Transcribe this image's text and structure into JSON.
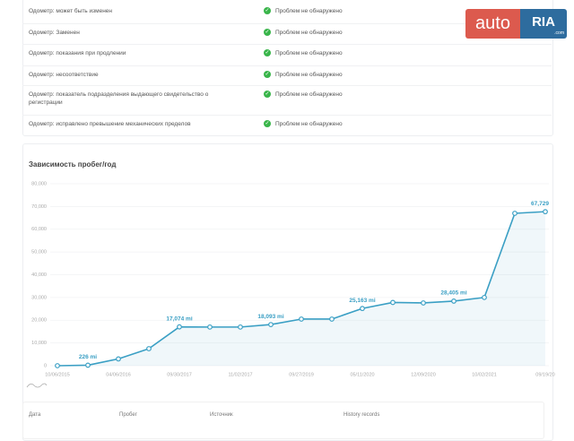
{
  "logo": {
    "left": "auto",
    "right": "RIA",
    "suffix": ".com"
  },
  "checks": [
    {
      "label": "Одометр: может быть изменен",
      "status": "Проблем не обнаружено"
    },
    {
      "label": "Одометр: Заменен",
      "status": "Проблем не обнаружено"
    },
    {
      "label": "Одометр: показания при продлении",
      "status": "Проблем не обнаружено"
    },
    {
      "label": "Одометр: несоответствие",
      "status": "Проблем не обнаружено"
    },
    {
      "label": "Одометр: показатель подразделения выдающего свидетельство о регистрации",
      "status": "Проблем не обнаружено"
    },
    {
      "label": "Одометр: исправлено превышение механических пределов",
      "status": "Проблем не обнаружено"
    }
  ],
  "chart_data": {
    "type": "line",
    "title": "Зависимость пробег/год",
    "categories": [
      "10/06/2015",
      null,
      "04/06/2016",
      null,
      "09/30/2017",
      null,
      "11/02/2017",
      null,
      "09/27/2019",
      null,
      "05/11/2020",
      null,
      "12/09/2020",
      null,
      "10/02/2021",
      null,
      "09/19/20"
    ],
    "values": [
      0,
      226,
      3000,
      7500,
      17074,
      17000,
      17000,
      18093,
      20500,
      20500,
      25163,
      27800,
      27600,
      28405,
      30000,
      67000,
      67729
    ],
    "value_labels": [
      null,
      "226 mi",
      null,
      null,
      "17,074 mi",
      null,
      null,
      "18,093 mi",
      null,
      null,
      "25,163 mi",
      null,
      null,
      "28,405 mi",
      null,
      null,
      "67,729"
    ],
    "color": "#3a9fc4",
    "ylim": [
      0,
      80000
    ],
    "yticks": [
      0,
      {
        "value": 10000,
        "label": "10,000"
      },
      {
        "value": 20000,
        "label": "20,000"
      },
      {
        "value": 30000,
        "label": "30,000"
      },
      {
        "value": 40000,
        "label": "40,000"
      },
      {
        "value": 50000,
        "label": "50,000"
      },
      {
        "value": 60000,
        "label": "60,000"
      },
      {
        "value": 70000,
        "label": "70,000"
      },
      {
        "value": 80000,
        "label": "80,000"
      }
    ],
    "grid": true
  },
  "table": {
    "headers": [
      "Дата",
      "Пробег",
      "Источник",
      "History records"
    ]
  }
}
